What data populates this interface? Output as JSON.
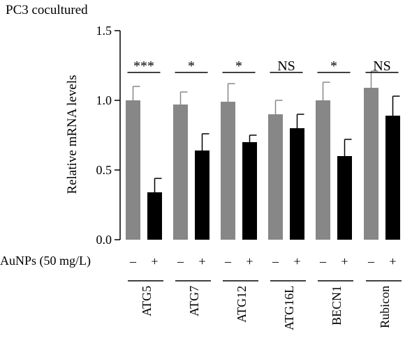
{
  "chart_data": {
    "type": "bar",
    "title": "PC3 cocultured",
    "ylabel": "Relative mRNA levels",
    "ylim": [
      0,
      1.5
    ],
    "yticks": [
      "0.0",
      "0.5",
      "1.0",
      "1.5"
    ],
    "treatment_label": "AuNPs (50 mg/L)",
    "treatment_signs": [
      "–",
      "+"
    ],
    "categories": [
      "ATG5",
      "ATG7",
      "ATG12",
      "ATG16L",
      "BECN1",
      "Rubicon"
    ],
    "series": [
      {
        "sign": "–",
        "color": "#878787",
        "values": [
          1.0,
          0.97,
          0.99,
          0.9,
          1.0,
          1.09
        ],
        "errors": [
          0.1,
          0.09,
          0.13,
          0.1,
          0.13,
          0.12
        ]
      },
      {
        "sign": "+",
        "color": "#000000",
        "values": [
          0.34,
          0.64,
          0.7,
          0.8,
          0.6,
          0.89
        ],
        "errors": [
          0.1,
          0.12,
          0.05,
          0.1,
          0.12,
          0.14
        ]
      }
    ],
    "significance": [
      "***",
      "*",
      "*",
      "NS",
      "*",
      "NS"
    ],
    "grid": false,
    "legend": "none"
  }
}
